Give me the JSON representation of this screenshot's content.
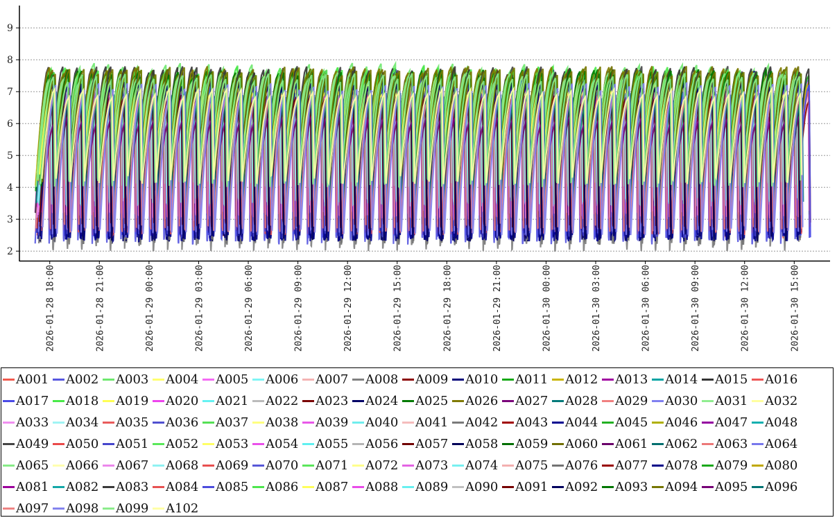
{
  "chart_data": {
    "type": "line",
    "title": "",
    "xlabel": "",
    "ylabel": "",
    "ylim": [
      1.7,
      9.7
    ],
    "yticks": [
      2,
      3,
      4,
      5,
      6,
      7,
      8,
      9
    ],
    "xticks": [
      "2026-01-28 18:00",
      "2026-01-28 21:00",
      "2026-01-29 00:00",
      "2026-01-29 03:00",
      "2026-01-29 06:00",
      "2026-01-29 09:00",
      "2026-01-29 12:00",
      "2026-01-29 15:00",
      "2026-01-29 18:00",
      "2026-01-29 21:00",
      "2026-01-30 00:00",
      "2026-01-30 03:00",
      "2026-01-30 06:00",
      "2026-01-30 09:00",
      "2026-01-30 12:00",
      "2026-01-30 15:00"
    ],
    "xlim": [
      "2026-01-28 16:10",
      "2026-01-30 17:10"
    ],
    "grid": "horizontal dashed",
    "legend_position": "bottom",
    "series_pattern": "sawtooth: each series rises from about 2.2–4.5 to about 7–8 over roughly 1 hour, then drops sharply; 54 cycles across the range",
    "series": [
      {
        "name": "A001",
        "color": "#f15a4e",
        "min": 2.4,
        "max": 7.2
      },
      {
        "name": "A002",
        "color": "#5757e0",
        "min": 2.2,
        "max": 7.6
      },
      {
        "name": "A003",
        "color": "#6ee86e",
        "min": 4.5,
        "max": 7.9
      },
      {
        "name": "A004",
        "color": "#ffff70",
        "min": 4.1,
        "max": 7.3
      },
      {
        "name": "A005",
        "color": "#f46af4",
        "min": 3.0,
        "max": 7.4
      },
      {
        "name": "A006",
        "color": "#7ff5f5",
        "min": 3.5,
        "max": 6.9
      },
      {
        "name": "A007",
        "color": "#f4b3b3",
        "min": 2.8,
        "max": 7.0
      },
      {
        "name": "A008",
        "color": "#808080",
        "min": 2.0,
        "max": 7.1
      },
      {
        "name": "A009",
        "color": "#8b0000",
        "min": 2.6,
        "max": 7.0
      },
      {
        "name": "A010",
        "color": "#00007a",
        "min": 2.3,
        "max": 7.7
      },
      {
        "name": "A011",
        "color": "#12a812",
        "min": 3.8,
        "max": 7.6
      },
      {
        "name": "A012",
        "color": "#c8b400",
        "min": 3.9,
        "max": 7.5
      },
      {
        "name": "A013",
        "color": "#a000a0",
        "min": 3.0,
        "max": 6.8
      },
      {
        "name": "A014",
        "color": "#00a3a3",
        "min": 3.2,
        "max": 7.2
      },
      {
        "name": "A015",
        "color": "#333333",
        "min": 2.9,
        "max": 7.8
      },
      {
        "name": "A016",
        "color": "#ee5555",
        "min": 2.5,
        "max": 7.3
      },
      {
        "name": "A017",
        "color": "#4a4ae6",
        "min": 2.4,
        "max": 7.5
      },
      {
        "name": "A018",
        "color": "#49ea49",
        "min": 4.0,
        "max": 7.8
      },
      {
        "name": "A019",
        "color": "#ffff55",
        "min": 4.2,
        "max": 7.2
      },
      {
        "name": "A020",
        "color": "#ee44ee",
        "min": 3.1,
        "max": 7.1
      },
      {
        "name": "A021",
        "color": "#66f2f2",
        "min": 3.4,
        "max": 6.8
      },
      {
        "name": "A022",
        "color": "#bbbbbb",
        "min": 3.0,
        "max": 6.9
      },
      {
        "name": "A023",
        "color": "#7a0000",
        "min": 2.7,
        "max": 6.9
      },
      {
        "name": "A024",
        "color": "#000066",
        "min": 2.3,
        "max": 7.4
      },
      {
        "name": "A025",
        "color": "#007a00",
        "min": 3.9,
        "max": 7.7
      },
      {
        "name": "A026",
        "color": "#807a00",
        "min": 4.0,
        "max": 7.8
      },
      {
        "name": "A027",
        "color": "#7a007a",
        "min": 3.2,
        "max": 6.4
      },
      {
        "name": "A028",
        "color": "#007a7a",
        "min": 3.5,
        "max": 7.0
      },
      {
        "name": "A029",
        "color": "#f08080",
        "min": 2.6,
        "max": 7.0
      },
      {
        "name": "A030",
        "color": "#8080f0",
        "min": 2.5,
        "max": 7.3
      },
      {
        "name": "A031",
        "color": "#90ee90",
        "min": 4.0,
        "max": 7.6
      },
      {
        "name": "A032",
        "color": "#ffffa0",
        "min": 4.1,
        "max": 7.1
      },
      {
        "name": "A033",
        "color": "#f090f0",
        "min": 3.0,
        "max": 7.0
      },
      {
        "name": "A034",
        "color": "#a0f4f4",
        "min": 3.4,
        "max": 6.7
      },
      {
        "name": "A035",
        "color": "#e95c5c",
        "min": 2.5,
        "max": 7.2
      },
      {
        "name": "A036",
        "color": "#5050d0",
        "min": 2.4,
        "max": 7.4
      },
      {
        "name": "A037",
        "color": "#55e055",
        "min": 4.1,
        "max": 7.7
      },
      {
        "name": "A038",
        "color": "#ffff80",
        "min": 4.2,
        "max": 7.1
      },
      {
        "name": "A039",
        "color": "#e858e8",
        "min": 3.1,
        "max": 7.0
      },
      {
        "name": "A040",
        "color": "#70eeee",
        "min": 3.5,
        "max": 6.8
      },
      {
        "name": "A041",
        "color": "#f5bcbc",
        "min": 2.9,
        "max": 6.9
      },
      {
        "name": "A042",
        "color": "#7a7a7a",
        "min": 2.2,
        "max": 7.0
      },
      {
        "name": "A043",
        "color": "#a00000",
        "min": 2.6,
        "max": 6.9
      },
      {
        "name": "A044",
        "color": "#000090",
        "min": 2.3,
        "max": 7.5
      },
      {
        "name": "A045",
        "color": "#22b022",
        "min": 3.9,
        "max": 7.6
      },
      {
        "name": "A046",
        "color": "#b0b000",
        "min": 4.0,
        "max": 7.5
      },
      {
        "name": "A047",
        "color": "#9400a0",
        "min": 3.1,
        "max": 6.6
      },
      {
        "name": "A048",
        "color": "#10b0b0",
        "min": 3.3,
        "max": 7.1
      },
      {
        "name": "A049",
        "color": "#444444",
        "min": 2.8,
        "max": 7.8
      },
      {
        "name": "A050",
        "color": "#ea4a4a",
        "min": 2.5,
        "max": 7.2
      },
      {
        "name": "A051",
        "color": "#4646cc",
        "min": 2.4,
        "max": 7.4
      },
      {
        "name": "A052",
        "color": "#5ae85a",
        "min": 4.1,
        "max": 7.7
      },
      {
        "name": "A053",
        "color": "#ffff66",
        "min": 4.2,
        "max": 7.2
      },
      {
        "name": "A054",
        "color": "#ea50ea",
        "min": 3.0,
        "max": 7.1
      },
      {
        "name": "A055",
        "color": "#60f0f0",
        "min": 3.4,
        "max": 6.8
      },
      {
        "name": "A056",
        "color": "#b5b5b5",
        "min": 3.0,
        "max": 6.9
      },
      {
        "name": "A057",
        "color": "#700000",
        "min": 2.7,
        "max": 6.9
      },
      {
        "name": "A058",
        "color": "#000058",
        "min": 2.3,
        "max": 7.4
      },
      {
        "name": "A059",
        "color": "#006e00",
        "min": 3.9,
        "max": 7.7
      },
      {
        "name": "A060",
        "color": "#706e00",
        "min": 4.0,
        "max": 7.8
      },
      {
        "name": "A061",
        "color": "#6a006a",
        "min": 3.2,
        "max": 6.3
      },
      {
        "name": "A062",
        "color": "#006e6e",
        "min": 3.5,
        "max": 7.0
      },
      {
        "name": "A063",
        "color": "#ec7878",
        "min": 2.6,
        "max": 7.0
      },
      {
        "name": "A064",
        "color": "#7878ec",
        "min": 2.5,
        "max": 7.3
      },
      {
        "name": "A065",
        "color": "#88ec88",
        "min": 4.0,
        "max": 7.6
      },
      {
        "name": "A066",
        "color": "#ffffb0",
        "min": 4.1,
        "max": 7.1
      },
      {
        "name": "A067",
        "color": "#ec88ec",
        "min": 3.0,
        "max": 7.0
      },
      {
        "name": "A068",
        "color": "#90f2f2",
        "min": 3.4,
        "max": 6.7
      },
      {
        "name": "A069",
        "color": "#e85050",
        "min": 2.5,
        "max": 7.2
      },
      {
        "name": "A070",
        "color": "#5858d8",
        "min": 2.4,
        "max": 7.4
      },
      {
        "name": "A071",
        "color": "#5ce65c",
        "min": 4.1,
        "max": 7.7
      },
      {
        "name": "A072",
        "color": "#ffff8c",
        "min": 4.2,
        "max": 7.1
      },
      {
        "name": "A073",
        "color": "#e464e4",
        "min": 3.1,
        "max": 7.0
      },
      {
        "name": "A074",
        "color": "#78f0f0",
        "min": 3.5,
        "max": 6.8
      },
      {
        "name": "A075",
        "color": "#f3b0b0",
        "min": 2.9,
        "max": 6.9
      },
      {
        "name": "A076",
        "color": "#737373",
        "min": 2.2,
        "max": 7.0
      },
      {
        "name": "A077",
        "color": "#980000",
        "min": 2.6,
        "max": 6.9
      },
      {
        "name": "A078",
        "color": "#000088",
        "min": 2.3,
        "max": 7.5
      },
      {
        "name": "A079",
        "color": "#1aa81a",
        "min": 3.9,
        "max": 7.6
      },
      {
        "name": "A080",
        "color": "#c0a800",
        "min": 4.0,
        "max": 7.5
      },
      {
        "name": "A081",
        "color": "#9c009c",
        "min": 3.1,
        "max": 6.6
      },
      {
        "name": "A082",
        "color": "#14a8a8",
        "min": 3.3,
        "max": 7.1
      },
      {
        "name": "A083",
        "color": "#3a3a3a",
        "min": 2.8,
        "max": 7.8
      },
      {
        "name": "A084",
        "color": "#e75252",
        "min": 2.5,
        "max": 7.2
      },
      {
        "name": "A085",
        "color": "#4c4cdd",
        "min": 2.4,
        "max": 7.4
      },
      {
        "name": "A086",
        "color": "#4ee64e",
        "min": 4.1,
        "max": 7.7
      },
      {
        "name": "A087",
        "color": "#ffff5c",
        "min": 4.2,
        "max": 7.2
      },
      {
        "name": "A088",
        "color": "#e94ce9",
        "min": 3.0,
        "max": 7.1
      },
      {
        "name": "A089",
        "color": "#68f0f0",
        "min": 3.4,
        "max": 6.8
      },
      {
        "name": "A090",
        "color": "#c0c0c0",
        "min": 3.0,
        "max": 6.9
      },
      {
        "name": "A091",
        "color": "#760000",
        "min": 2.7,
        "max": 6.9
      },
      {
        "name": "A092",
        "color": "#00005e",
        "min": 2.3,
        "max": 7.4
      },
      {
        "name": "A093",
        "color": "#007600",
        "min": 3.9,
        "max": 7.7
      },
      {
        "name": "A094",
        "color": "#767600",
        "min": 4.0,
        "max": 7.8
      },
      {
        "name": "A095",
        "color": "#760076",
        "min": 3.2,
        "max": 6.3
      },
      {
        "name": "A096",
        "color": "#007474",
        "min": 3.5,
        "max": 7.0
      },
      {
        "name": "A097",
        "color": "#ee8484",
        "min": 2.6,
        "max": 7.0
      },
      {
        "name": "A098",
        "color": "#8484ee",
        "min": 2.5,
        "max": 7.3
      },
      {
        "name": "A099",
        "color": "#8cec8c",
        "min": 4.0,
        "max": 7.6
      },
      {
        "name": "A102",
        "color": "#ffffa8",
        "min": 4.1,
        "max": 7.1
      }
    ]
  }
}
